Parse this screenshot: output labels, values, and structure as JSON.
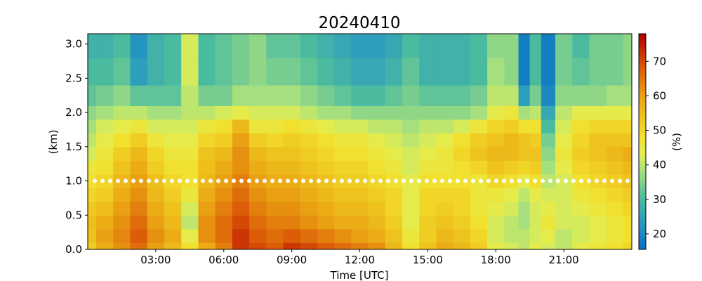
{
  "chart_data": {
    "type": "heatmap",
    "title": "20240410",
    "xlabel": "Time [UTC]",
    "ylabel": "(km)",
    "xlim_hours": [
      0,
      24
    ],
    "ylim_km": [
      0,
      3.15
    ],
    "x_ticks": [
      {
        "value": 3,
        "label": "03:00"
      },
      {
        "value": 6,
        "label": "06:00"
      },
      {
        "value": 9,
        "label": "09:00"
      },
      {
        "value": 12,
        "label": "12:00"
      },
      {
        "value": 15,
        "label": "15:00"
      },
      {
        "value": 18,
        "label": "18:00"
      },
      {
        "value": 21,
        "label": "21:00"
      }
    ],
    "y_ticks": [
      {
        "value": 0.0,
        "label": "0.0"
      },
      {
        "value": 0.5,
        "label": "0.5"
      },
      {
        "value": 1.0,
        "label": "1.0"
      },
      {
        "value": 1.5,
        "label": "1.5"
      },
      {
        "value": 2.0,
        "label": "2.0"
      },
      {
        "value": 2.5,
        "label": "2.5"
      },
      {
        "value": 3.0,
        "label": "3.0"
      }
    ],
    "colorbar": {
      "label": "(%)",
      "range": [
        15.5,
        78
      ],
      "ticks": [
        {
          "value": 20,
          "label": "20"
        },
        {
          "value": 30,
          "label": "30"
        },
        {
          "value": 40,
          "label": "40"
        },
        {
          "value": 50,
          "label": "50"
        },
        {
          "value": 60,
          "label": "60"
        },
        {
          "value": 70,
          "label": "70"
        }
      ],
      "colors": [
        {
          "v": 0.0,
          "c": "#0a70c2"
        },
        {
          "v": 0.12,
          "c": "#2899c1"
        },
        {
          "v": 0.24,
          "c": "#4ebd9e"
        },
        {
          "v": 0.36,
          "c": "#a6e07e"
        },
        {
          "v": 0.44,
          "c": "#e2ee52"
        },
        {
          "v": 0.52,
          "c": "#f2e02e"
        },
        {
          "v": 0.62,
          "c": "#efc21c"
        },
        {
          "v": 0.72,
          "c": "#e99d12"
        },
        {
          "v": 0.84,
          "c": "#dc5c08"
        },
        {
          "v": 0.93,
          "c": "#c52602"
        },
        {
          "v": 1.0,
          "c": "#ad0000"
        }
      ]
    },
    "heights_km": [
      0.0,
      0.2,
      0.4,
      0.6,
      0.8,
      1.0,
      1.2,
      1.4,
      1.6,
      1.8,
      2.0,
      2.2,
      2.6,
      3.0
    ],
    "times_hours": [
      0.0,
      0.75,
      1.5,
      2.25,
      3.0,
      3.75,
      4.5,
      5.25,
      6.0,
      6.75,
      7.5,
      8.25,
      9.0,
      9.75,
      10.5,
      11.25,
      12.0,
      12.75,
      13.5,
      14.25,
      15.0,
      15.75,
      16.5,
      17.25,
      18.0,
      18.75,
      19.25,
      19.75,
      20.25,
      21.0,
      21.75,
      22.5,
      23.25,
      24.0
    ],
    "values_pct": [
      [
        52,
        54,
        55,
        53,
        50,
        48,
        46,
        42,
        40,
        38,
        36,
        32,
        30,
        28
      ],
      [
        58,
        60,
        58,
        55,
        52,
        50,
        48,
        46,
        44,
        42,
        38,
        34,
        30,
        28
      ],
      [
        62,
        63,
        62,
        60,
        58,
        56,
        54,
        52,
        48,
        44,
        40,
        36,
        32,
        30
      ],
      [
        66,
        68,
        66,
        64,
        62,
        60,
        58,
        56,
        52,
        46,
        40,
        32,
        24,
        22
      ],
      [
        60,
        62,
        60,
        58,
        56,
        55,
        52,
        50,
        46,
        42,
        38,
        32,
        28,
        28
      ],
      [
        56,
        58,
        56,
        54,
        52,
        50,
        48,
        46,
        44,
        42,
        38,
        32,
        30,
        30
      ],
      [
        48,
        44,
        40,
        42,
        46,
        48,
        48,
        46,
        44,
        42,
        40,
        40,
        42,
        42
      ],
      [
        58,
        62,
        62,
        60,
        58,
        56,
        55,
        54,
        50,
        46,
        40,
        34,
        30,
        30
      ],
      [
        64,
        66,
        66,
        64,
        62,
        60,
        58,
        56,
        52,
        48,
        42,
        34,
        32,
        32
      ],
      [
        72,
        72,
        70,
        68,
        66,
        64,
        62,
        62,
        60,
        56,
        44,
        38,
        34,
        34
      ],
      [
        70,
        68,
        66,
        64,
        62,
        60,
        58,
        56,
        52,
        46,
        42,
        38,
        36,
        36
      ],
      [
        68,
        66,
        64,
        62,
        60,
        58,
        56,
        54,
        50,
        46,
        42,
        38,
        34,
        32
      ],
      [
        72,
        68,
        64,
        62,
        60,
        58,
        56,
        54,
        52,
        48,
        42,
        38,
        34,
        32
      ],
      [
        70,
        66,
        62,
        60,
        58,
        56,
        54,
        52,
        50,
        46,
        40,
        36,
        32,
        30
      ],
      [
        68,
        64,
        60,
        58,
        56,
        54,
        52,
        50,
        48,
        44,
        38,
        34,
        30,
        28
      ],
      [
        66,
        62,
        58,
        56,
        54,
        52,
        50,
        48,
        46,
        42,
        38,
        32,
        28,
        26
      ],
      [
        64,
        60,
        58,
        56,
        54,
        52,
        50,
        48,
        46,
        42,
        36,
        30,
        26,
        24
      ],
      [
        62,
        58,
        56,
        54,
        52,
        50,
        48,
        46,
        44,
        40,
        36,
        30,
        26,
        24
      ],
      [
        56,
        54,
        52,
        50,
        50,
        48,
        46,
        44,
        42,
        40,
        36,
        32,
        28,
        26
      ],
      [
        48,
        46,
        44,
        44,
        44,
        44,
        42,
        42,
        40,
        38,
        36,
        34,
        32,
        30
      ],
      [
        54,
        52,
        52,
        50,
        50,
        48,
        46,
        44,
        42,
        40,
        36,
        32,
        28,
        28
      ],
      [
        58,
        56,
        54,
        52,
        50,
        48,
        46,
        46,
        44,
        40,
        36,
        32,
        28,
        28
      ],
      [
        56,
        54,
        52,
        50,
        50,
        48,
        48,
        50,
        48,
        42,
        36,
        32,
        28,
        28
      ],
      [
        52,
        50,
        48,
        46,
        46,
        46,
        50,
        54,
        52,
        46,
        38,
        34,
        30,
        30
      ],
      [
        44,
        42,
        42,
        44,
        46,
        50,
        54,
        56,
        54,
        50,
        44,
        40,
        38,
        36
      ],
      [
        42,
        40,
        40,
        42,
        44,
        48,
        52,
        56,
        56,
        52,
        46,
        40,
        36,
        36
      ],
      [
        40,
        40,
        38,
        38,
        40,
        44,
        50,
        54,
        54,
        48,
        38,
        24,
        18,
        18
      ],
      [
        44,
        42,
        42,
        42,
        44,
        48,
        52,
        54,
        52,
        48,
        40,
        34,
        30,
        30
      ],
      [
        42,
        44,
        46,
        44,
        42,
        40,
        38,
        36,
        34,
        30,
        26,
        20,
        18,
        18
      ],
      [
        40,
        40,
        42,
        42,
        42,
        42,
        44,
        46,
        44,
        42,
        40,
        36,
        34,
        34
      ],
      [
        44,
        42,
        42,
        44,
        46,
        48,
        50,
        52,
        50,
        48,
        44,
        36,
        32,
        30
      ],
      [
        46,
        44,
        44,
        46,
        48,
        50,
        52,
        54,
        54,
        50,
        44,
        36,
        34,
        34
      ],
      [
        48,
        46,
        46,
        48,
        50,
        52,
        54,
        56,
        54,
        50,
        44,
        38,
        34,
        34
      ],
      [
        50,
        48,
        48,
        50,
        52,
        54,
        56,
        58,
        54,
        50,
        44,
        38,
        36,
        36
      ]
    ],
    "reference_line": {
      "y_km": 1.0,
      "color": "#ffffff",
      "style": "dotted"
    }
  }
}
